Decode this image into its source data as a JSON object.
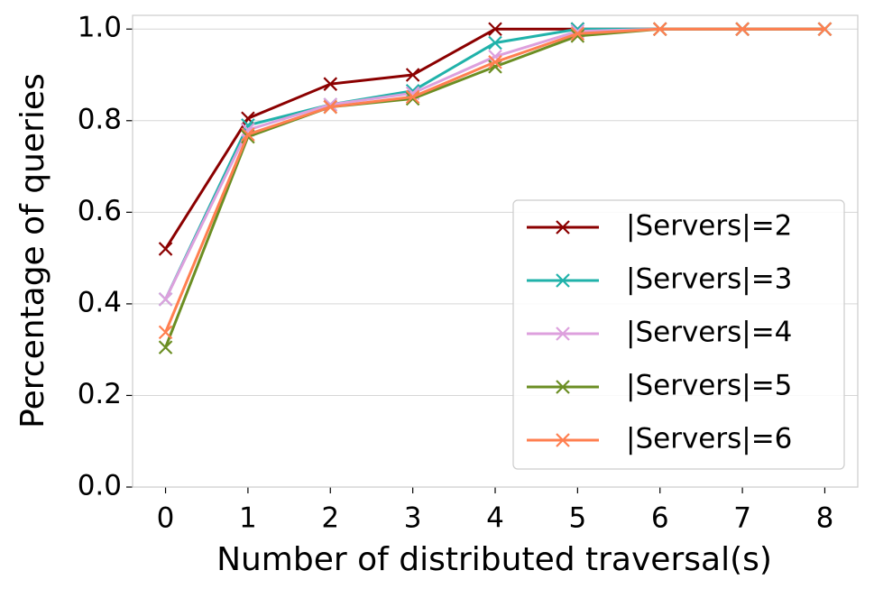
{
  "chart_data": {
    "type": "line",
    "x_label": "Number of distributed traversal(s)",
    "y_label": "Percentage of queries",
    "x": [
      0,
      1,
      2,
      3,
      4,
      5,
      6,
      7,
      8
    ],
    "xlim": [
      -0.4,
      8.4
    ],
    "xticks": [
      0,
      1,
      2,
      3,
      4,
      5,
      6,
      7,
      8
    ],
    "ylim": [
      0,
      1.03
    ],
    "yticks": [
      {
        "value": 0,
        "label": "0.0"
      },
      {
        "value": 0.2,
        "label": "0.2"
      },
      {
        "value": 0.4,
        "label": "0.4"
      },
      {
        "value": 0.6,
        "label": "0.6"
      },
      {
        "value": 0.8,
        "label": "0.8"
      },
      {
        "value": 1,
        "label": "1.0"
      }
    ],
    "grid": true,
    "legend": "lower right",
    "series": [
      {
        "name": "|Servers|=2",
        "color": "#8b0000",
        "values": [
          0.52,
          0.805,
          0.88,
          0.9,
          1.0,
          1.0,
          1.0,
          1.0,
          1.0
        ]
      },
      {
        "name": "|Servers|=3",
        "color": "#20b2aa",
        "values": [
          0.41,
          0.79,
          0.835,
          0.865,
          0.97,
          1.0,
          1.0,
          1.0,
          1.0
        ]
      },
      {
        "name": "|Servers|=4",
        "color": "#dda0dd",
        "values": [
          0.41,
          0.78,
          0.835,
          0.86,
          0.94,
          0.995,
          1.0,
          1.0,
          1.0
        ]
      },
      {
        "name": "|Servers|=5",
        "color": "#6b8e23",
        "values": [
          0.305,
          0.765,
          0.83,
          0.848,
          0.918,
          0.985,
          1.0,
          1.0,
          1.0
        ]
      },
      {
        "name": "|Servers|=6",
        "color": "#ff7f50",
        "values": [
          0.338,
          0.77,
          0.83,
          0.852,
          0.928,
          0.99,
          1.0,
          1.0,
          1.0
        ]
      }
    ]
  }
}
